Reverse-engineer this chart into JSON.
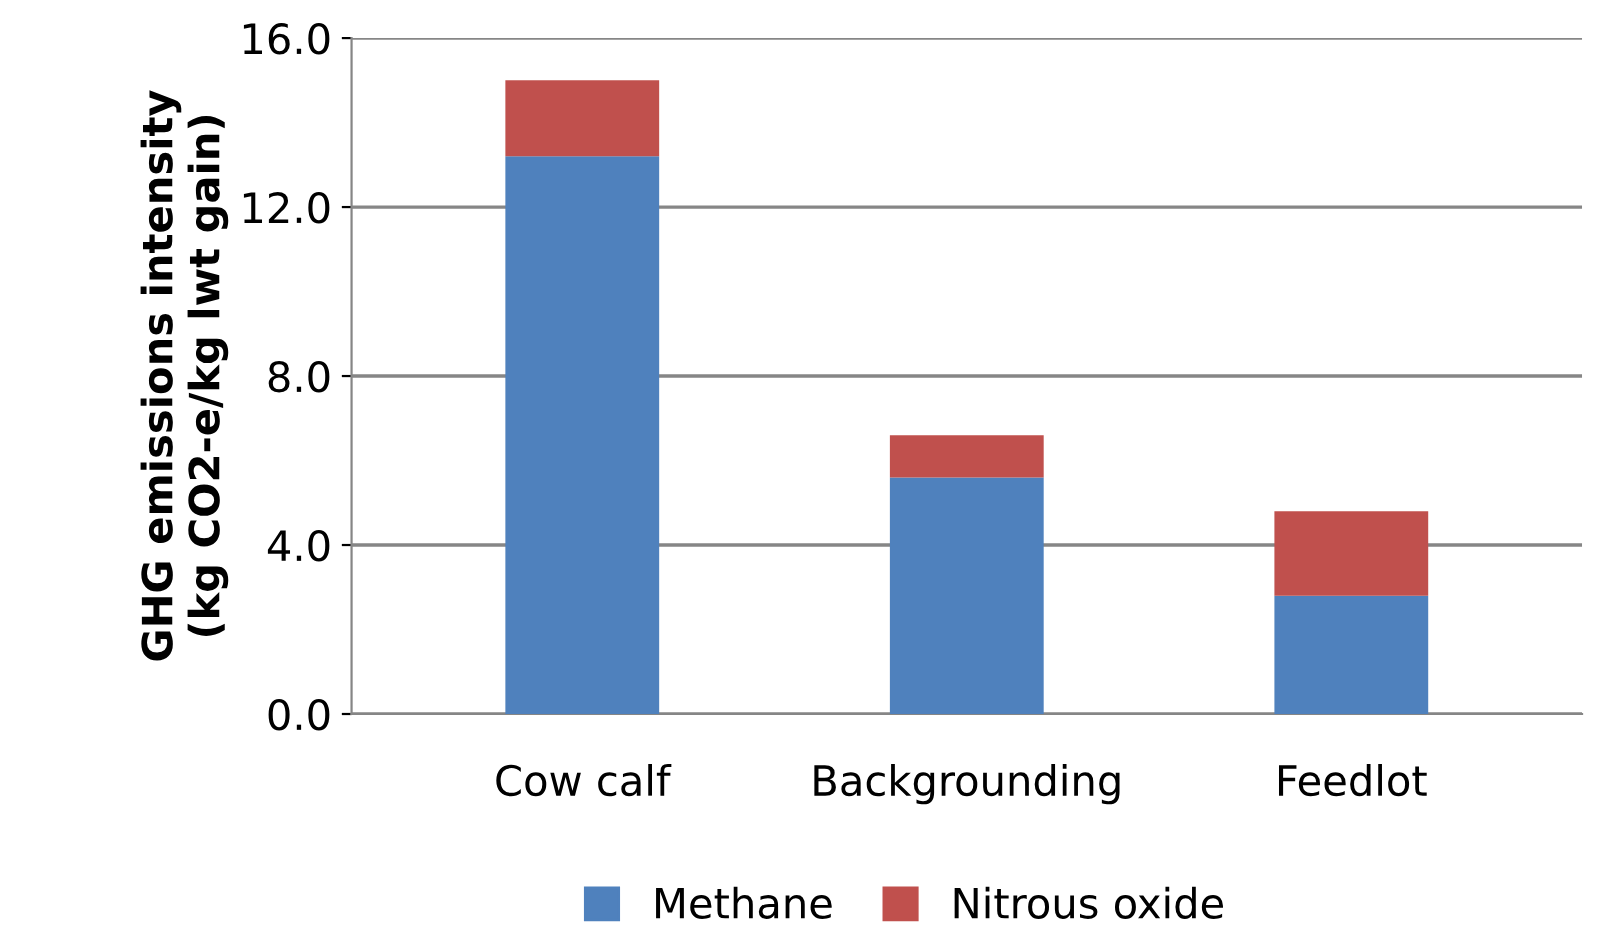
{
  "chart_data": {
    "type": "bar",
    "stacked": true,
    "ylabel": "GHG emissions intensity\n(kg CO2-e/kg lwt gain)",
    "categories": [
      "Cow calf",
      "Backgrounding",
      "Feedlot"
    ],
    "series": [
      {
        "name": "Methane",
        "color": "#4f81bd",
        "values": [
          13.2,
          5.6,
          2.8
        ]
      },
      {
        "name": "Nitrous oxide",
        "color": "#c0504d",
        "values": [
          1.8,
          1.0,
          2.0
        ]
      }
    ],
    "ylim": [
      0,
      16
    ],
    "yticks": [
      {
        "value": 0,
        "label": "0.0"
      },
      {
        "value": 4,
        "label": "4.0"
      },
      {
        "value": 8,
        "label": "8.0"
      },
      {
        "value": 12,
        "label": "12.0"
      },
      {
        "value": 16,
        "label": "16.0"
      }
    ],
    "grid": "y",
    "legend": "bottom"
  }
}
